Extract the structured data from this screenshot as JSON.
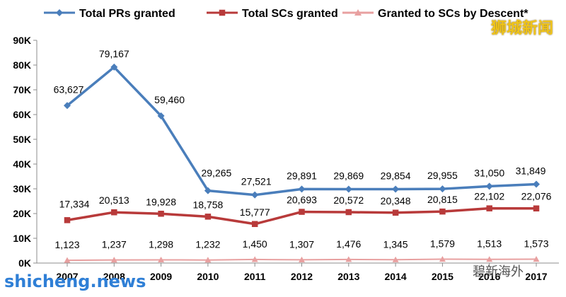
{
  "chart_data": {
    "type": "line",
    "title": "",
    "xlabel": "",
    "ylabel": "",
    "categories": [
      "2007",
      "2008",
      "2009",
      "2010",
      "2011",
      "2012",
      "2013",
      "2014",
      "2015",
      "2016",
      "2017"
    ],
    "y_ticks": [
      "0K",
      "10K",
      "20K",
      "30K",
      "40K",
      "50K",
      "60K",
      "70K",
      "80K",
      "90K"
    ],
    "ylim": [
      0,
      90000
    ],
    "grid": false,
    "legend_position": "top",
    "series": [
      {
        "name": "Total PRs granted",
        "color": "#4a7ebb",
        "marker": "diamond",
        "values": [
          63627,
          79167,
          59460,
          29265,
          27521,
          29891,
          29869,
          29854,
          29955,
          31050,
          31849
        ],
        "labels": [
          "63,627",
          "79,167",
          "59,460",
          "29,265",
          "27,521",
          "29,891",
          "29,869",
          "29,854",
          "29,955",
          "31,050",
          "31,849"
        ]
      },
      {
        "name": "Total SCs granted",
        "color": "#b83a3a",
        "marker": "square",
        "values": [
          17334,
          20513,
          19928,
          18758,
          15777,
          20693,
          20572,
          20348,
          20815,
          22102,
          22076
        ],
        "labels": [
          "17,334",
          "20,513",
          "19,928",
          "18,758",
          "15,777",
          "20,693",
          "20,572",
          "20,348",
          "20,815",
          "22,102",
          "22,076"
        ]
      },
      {
        "name": "Granted to SCs by Descent*",
        "color": "#e8a0a0",
        "marker": "triangle",
        "values": [
          1123,
          1237,
          1298,
          1232,
          1450,
          1307,
          1476,
          1345,
          1579,
          1513,
          1573
        ],
        "labels": [
          "1,123",
          "1,237",
          "1,298",
          "1,232",
          "1,450",
          "1,307",
          "1,476",
          "1,345",
          "1,579",
          "1,513",
          "1,573"
        ]
      }
    ]
  },
  "watermarks": {
    "top_right": "狮城新闻",
    "bottom_left": "shicheng.news",
    "bottom_right": "碧新海外"
  }
}
